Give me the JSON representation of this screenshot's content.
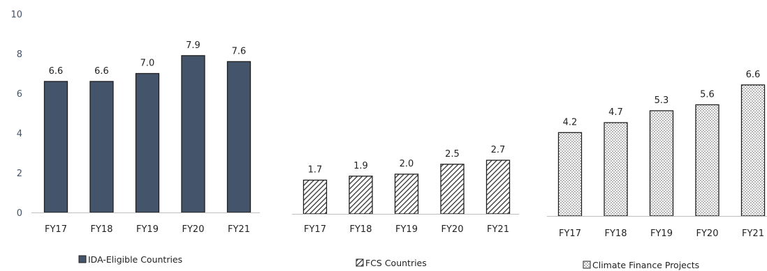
{
  "chart_data": [
    {
      "type": "bar",
      "categories": [
        "FY17",
        "FY18",
        "FY19",
        "FY20",
        "FY21"
      ],
      "series": [
        {
          "name": "IDA-Eligible Countries",
          "values": [
            6.6,
            6.6,
            7.0,
            7.9,
            7.6
          ]
        }
      ],
      "value_labels": [
        "6.6",
        "6.6",
        "7.0",
        "7.9",
        "7.6"
      ],
      "ylim": [
        0,
        10
      ],
      "yticks": [
        "0",
        "2",
        "4",
        "6",
        "8",
        "10"
      ],
      "fill": "solid",
      "color": "#44546a",
      "grid": false,
      "legend": "bottom"
    },
    {
      "type": "bar",
      "categories": [
        "FY17",
        "FY18",
        "FY19",
        "FY20",
        "FY21"
      ],
      "series": [
        {
          "name": "FCS Countries",
          "values": [
            1.7,
            1.9,
            2.0,
            2.5,
            2.7
          ]
        }
      ],
      "value_labels": [
        "1.7",
        "1.9",
        "2.0",
        "2.5",
        "2.7"
      ],
      "ylim": [
        0,
        10
      ],
      "fill": "diagonal-hatch",
      "color": "#333333",
      "grid": false,
      "legend": "bottom"
    },
    {
      "type": "bar",
      "categories": [
        "FY17",
        "FY18",
        "FY19",
        "FY20",
        "FY21"
      ],
      "series": [
        {
          "name": "Climate Finance Projects",
          "values": [
            4.2,
            4.7,
            5.3,
            5.6,
            6.6
          ]
        }
      ],
      "value_labels": [
        "4.2",
        "4.7",
        "5.3",
        "5.6",
        "6.6"
      ],
      "ylim": [
        0,
        10
      ],
      "fill": "dotted",
      "color": "#333333",
      "grid": false,
      "legend": "bottom"
    }
  ]
}
